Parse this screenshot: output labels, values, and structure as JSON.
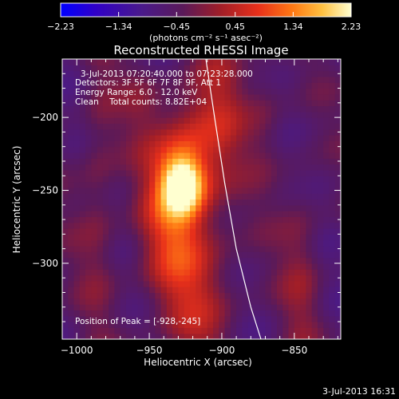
{
  "chart_data": {
    "type": "heatmap",
    "title": "Reconstructed RHESSI Image",
    "xlabel": "Heliocentric X (arcsec)",
    "ylabel": "Heliocentric Y (arcsec)",
    "xlim": [
      -1010,
      -818
    ],
    "ylim": [
      -352,
      -160
    ],
    "xticks": [
      -1000,
      -950,
      -900,
      -850
    ],
    "xtick_labels": [
      "−1000",
      "−950",
      "−900",
      "−850"
    ],
    "yticks": [
      -200,
      -250,
      -300
    ],
    "ytick_labels": [
      "−200",
      "−250",
      "−300"
    ],
    "colorbar": {
      "min": -2.23,
      "max": 2.23,
      "ticks": [
        -2.23,
        -1.34,
        -0.45,
        0.45,
        1.34,
        2.23
      ],
      "tick_labels": [
        "−2.23",
        "−1.34",
        "−0.45",
        "0.45",
        "1.34",
        "2.23"
      ],
      "unit_label": "(photons cm⁻² s⁻¹ asec⁻²)"
    },
    "annotations": {
      "time_range": "3-Jul-2013 07:20:40.000 to 07:23:28.000",
      "detectors": "Detectors: 3F 5F 6F 7F 8F 9F, Att 1",
      "energy": "Energy Range: 6.0 - 12.0 keV",
      "clean": "Clean    Total counts: 8.82E+04",
      "peak": "Position of Peak = [-928,-245]"
    },
    "peak_position": [
      -928,
      -245
    ],
    "limb_points": [
      [
        -911,
        -160
      ],
      [
        -905,
        -200
      ],
      [
        -898,
        -245
      ],
      [
        -890,
        -290
      ],
      [
        -880,
        -330
      ],
      [
        -873,
        -352
      ]
    ],
    "blobs": [
      {
        "x": -927,
        "y": -246,
        "value": 2.23,
        "sx": 10,
        "sy": 14
      },
      {
        "x": -935,
        "y": -268,
        "value": 1.2,
        "sx": 16,
        "sy": 42
      },
      {
        "x": -920,
        "y": -222,
        "value": 0.9,
        "sx": 14,
        "sy": 30
      },
      {
        "x": -985,
        "y": -245,
        "value": 0.5,
        "sx": 10,
        "sy": 70
      },
      {
        "x": -900,
        "y": -195,
        "value": 0.6,
        "sx": 12,
        "sy": 40
      },
      {
        "x": -915,
        "y": -320,
        "value": 0.7,
        "sx": 18,
        "sy": 40
      },
      {
        "x": -845,
        "y": -305,
        "value": 0.5,
        "sx": 10,
        "sy": 50
      },
      {
        "x": -870,
        "y": -195,
        "value": 0.4,
        "sx": 10,
        "sy": 30
      },
      {
        "x": -955,
        "y": -185,
        "value": 0.3,
        "sx": 10,
        "sy": 20
      }
    ]
  },
  "footer": {
    "date": "3-Jul-2013 16:31"
  }
}
